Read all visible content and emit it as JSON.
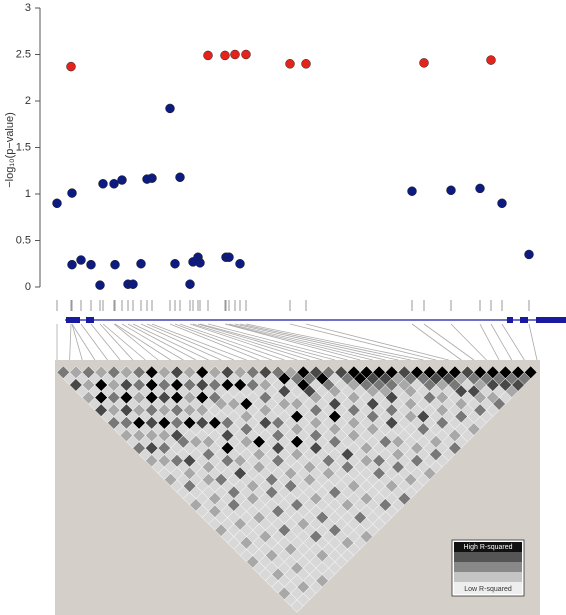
{
  "chart_data": {
    "type": "scatter",
    "ylabel": "−log₁₀(p−value)",
    "xlim": [
      40,
      566
    ],
    "ylim": [
      0,
      3
    ],
    "yticks": [
      0,
      0.5,
      1,
      1.5,
      2,
      2.5,
      3
    ],
    "series": [
      {
        "color": "#0d1a80",
        "x": [
          57,
          72,
          72,
          81,
          91,
          100,
          103,
          114,
          115,
          122,
          128,
          133,
          141,
          147,
          152,
          170,
          175,
          180,
          190,
          193,
          198,
          200,
          226,
          229,
          240,
          412,
          451,
          480,
          502,
          529
        ],
        "values": [
          0.9,
          1.01,
          0.24,
          0.29,
          0.24,
          0.02,
          1.11,
          1.11,
          0.24,
          1.15,
          0.03,
          0.03,
          0.25,
          1.16,
          1.17,
          1.92,
          0.25,
          1.18,
          0.03,
          0.27,
          0.32,
          0.26,
          0.32,
          0.32,
          0.25,
          1.03,
          1.04,
          1.06,
          0.9,
          0.35
        ]
      },
      {
        "color": "#e4231b",
        "x": [
          71,
          208,
          225,
          235,
          246,
          290,
          306,
          424,
          491
        ],
        "values": [
          2.37,
          2.49,
          2.49,
          2.5,
          2.5,
          2.4,
          2.4,
          2.41,
          2.44
        ]
      }
    ],
    "ld_r2": [
      [
        0.5
      ],
      [
        0.1,
        0.3
      ],
      [
        0.7,
        0.1,
        0.5
      ],
      [
        0.1,
        0.3,
        0.1,
        0.3
      ],
      [
        0.3,
        0.1,
        1,
        0.1,
        0.5
      ],
      [
        0.1,
        1,
        0.1,
        0.3,
        0.1,
        0.3
      ],
      [
        0.7,
        0.1,
        0.5,
        0.1,
        0.7,
        0.1,
        0.5
      ],
      [
        0.1,
        0.3,
        0.1,
        1,
        0.1,
        0.5,
        0.1,
        1
      ],
      [
        0.5,
        0.1,
        0.7,
        0.1,
        0.3,
        0.1,
        1,
        0.1,
        0.3
      ],
      [
        0.1,
        0.5,
        0.1,
        0.3,
        0.1,
        1,
        0.1,
        0.5,
        0.1,
        0.7
      ],
      [
        0.3,
        0.1,
        1,
        0.1,
        0.5,
        0.1,
        0.7,
        0.1,
        1,
        0.1,
        0.3
      ],
      [
        0.1,
        0.3,
        0.1,
        0.7,
        0.1,
        0.3,
        0.1,
        1,
        0.1,
        0.5,
        0.1,
        1
      ],
      [
        0.5,
        0.1,
        0.3,
        0.1,
        1,
        0.1,
        0.5,
        0.1,
        0.3,
        0.1,
        0.7,
        0.1,
        0.3
      ],
      [
        0.1,
        0.7,
        0.1,
        0.3,
        0.1,
        0.5,
        0.1,
        0.3,
        0.1,
        1,
        0.1,
        0.5,
        0.1,
        0.7
      ],
      [
        0.3,
        0.1,
        0.5,
        0.1,
        0.7,
        0.1,
        1,
        0.1,
        0.3,
        0.1,
        0.5,
        0.1,
        1,
        0.1,
        0.3
      ],
      [
        0.1,
        0.3,
        0.1,
        0.1,
        0.5,
        0.1,
        0.1,
        0.7,
        0.1,
        0.1,
        0.3,
        0.1,
        0.1,
        1,
        0.1,
        0.5
      ],
      [
        0.1,
        0.1,
        0.5,
        0.1,
        0.1,
        0.3,
        0.1,
        0.1,
        1,
        0.1,
        0.1,
        0.3,
        0.1,
        0.1,
        0.5,
        0.1,
        0.7
      ],
      [
        0.3,
        0.1,
        0.1,
        0.7,
        0.1,
        0.1,
        0.3,
        0.1,
        0.1,
        0.5,
        0.1,
        0.1,
        1,
        0.1,
        0.1,
        0.3,
        0.1,
        0.5
      ],
      [
        0.1,
        0.1,
        0.3,
        0.1,
        0.1,
        0.5,
        0.1,
        0.1,
        0.7,
        0.1,
        0.1,
        0.3,
        0.1,
        0.1,
        0.5,
        0.1,
        0.1,
        1,
        0.3
      ],
      [
        0.1,
        0.5,
        0.1,
        0.1,
        0.3,
        0.1,
        0.1,
        1,
        0.1,
        0.1,
        0.5,
        0.1,
        0.1,
        0.3,
        0.1,
        0.1,
        0.7,
        0.1,
        0.5,
        1
      ],
      [
        0.1,
        0.1,
        0.1,
        0.3,
        0.1,
        0.1,
        0.5,
        0.1,
        0.1,
        0.3,
        0.1,
        0.1,
        0.7,
        0.1,
        0.1,
        0.3,
        0.1,
        0.1,
        1,
        0.5,
        0.7
      ],
      [
        0.3,
        0.1,
        0.1,
        0.1,
        0.5,
        0.1,
        0.1,
        0.3,
        0.1,
        0.1,
        1,
        0.1,
        0.1,
        0.5,
        0.1,
        0.1,
        0.3,
        0.1,
        0.7,
        0.1,
        1,
        0.5
      ],
      [
        0.1,
        0.1,
        0.3,
        0.1,
        0.1,
        0.1,
        0.7,
        0.1,
        0.1,
        0.3,
        0.1,
        0.1,
        0.5,
        0.1,
        0.1,
        1,
        0.1,
        0.1,
        0.3,
        0.1,
        0.5,
        0.1,
        0.7
      ],
      [
        0.1,
        0.3,
        0.1,
        0.1,
        0.5,
        0.1,
        0.1,
        0.1,
        0.3,
        0.1,
        0.1,
        0.7,
        0.1,
        0.1,
        0.3,
        0.1,
        0.1,
        0.5,
        0.1,
        0.1,
        0.3,
        0.1,
        0.5,
        1
      ],
      [
        0.1,
        0.1,
        0.1,
        0.5,
        0.1,
        0.1,
        0.3,
        0.1,
        0.1,
        0.1,
        0.5,
        0.1,
        0.1,
        1,
        0.1,
        0.1,
        0.3,
        0.1,
        0.1,
        0.7,
        0.1,
        0.1,
        0.3,
        1,
        1
      ],
      [
        0.3,
        0.1,
        0.1,
        0.1,
        0.1,
        0.3,
        0.1,
        0.1,
        0.5,
        0.1,
        0.1,
        0.1,
        0.3,
        0.1,
        0.1,
        0.5,
        0.1,
        0.1,
        1,
        0.1,
        0.1,
        0.3,
        0.1,
        0.5,
        0.7,
        1
      ],
      [
        0.1,
        0.1,
        0.3,
        0.1,
        0.1,
        0.1,
        0.1,
        0.5,
        0.1,
        0.1,
        0.3,
        0.1,
        0.1,
        0.1,
        0.7,
        0.1,
        0.1,
        0.3,
        0.1,
        0.1,
        0.5,
        0.1,
        0.1,
        0.3,
        0.5,
        0.7,
        1
      ],
      [
        0.1,
        0.1,
        0.1,
        0.1,
        0.3,
        0.1,
        0.1,
        0.1,
        0.1,
        0.5,
        0.1,
        0.1,
        0.3,
        0.1,
        0.1,
        0.1,
        0.5,
        0.1,
        0.1,
        0.3,
        0.1,
        0.1,
        0.7,
        0.1,
        0.3,
        0.5,
        0.3,
        0.7
      ],
      [
        0.1,
        0.3,
        0.1,
        0.1,
        0.1,
        0.1,
        0.5,
        0.1,
        0.1,
        0.1,
        0.1,
        0.3,
        0.1,
        0.1,
        0.5,
        0.1,
        0.1,
        0.1,
        0.3,
        0.1,
        0.1,
        0.5,
        0.1,
        0.1,
        0.7,
        0.1,
        0.3,
        0.5,
        1
      ],
      [
        0.1,
        0.1,
        0.1,
        0.3,
        0.1,
        0.1,
        0.1,
        0.1,
        0.5,
        0.1,
        0.1,
        0.1,
        0.1,
        0.3,
        0.1,
        0.1,
        0.7,
        0.1,
        0.1,
        0.1,
        0.3,
        0.1,
        0.1,
        0.5,
        0.1,
        0.1,
        0.3,
        0.1,
        0.5,
        1
      ],
      [
        0.3,
        0.1,
        0.1,
        0.1,
        0.1,
        0.5,
        0.1,
        0.1,
        0.1,
        0.1,
        0.3,
        0.1,
        0.1,
        0.1,
        0.1,
        0.5,
        0.1,
        0.1,
        0.3,
        0.1,
        0.1,
        0.1,
        0.7,
        0.1,
        0.1,
        0.3,
        0.1,
        0.1,
        0.5,
        0.7,
        1
      ],
      [
        0.1,
        0.1,
        0.3,
        0.1,
        0.1,
        0.1,
        0.1,
        0.3,
        0.1,
        0.1,
        0.1,
        0.1,
        0.5,
        0.1,
        0.1,
        0.1,
        0.1,
        0.3,
        0.1,
        0.1,
        0.5,
        0.1,
        0.1,
        0.1,
        0.3,
        0.1,
        0.1,
        0.5,
        0.1,
        0.3,
        0.7,
        1
      ],
      [
        0.1,
        0.1,
        0.1,
        0.1,
        0.3,
        0.1,
        0.1,
        0.1,
        0.1,
        0.5,
        0.1,
        0.1,
        0.1,
        0.1,
        0.3,
        0.1,
        0.1,
        0.1,
        0.5,
        0.1,
        0.1,
        0.3,
        0.1,
        0.1,
        0.1,
        0.7,
        0.1,
        0.1,
        0.3,
        0.1,
        0.5,
        0.3,
        0.7
      ],
      [
        0.1,
        0.3,
        0.1,
        0.1,
        0.1,
        0.1,
        0.1,
        0.5,
        0.1,
        0.1,
        0.1,
        0.1,
        0.3,
        0.1,
        0.1,
        0.1,
        0.1,
        0.5,
        0.1,
        0.1,
        0.3,
        0.1,
        0.1,
        0.1,
        0.5,
        0.1,
        0.1,
        0.3,
        0.1,
        0.1,
        0.7,
        0.1,
        0.5,
        1
      ],
      [
        0.1,
        0.1,
        0.1,
        0.3,
        0.1,
        0.1,
        0.1,
        0.1,
        0.1,
        0.5,
        0.1,
        0.1,
        0.1,
        0.1,
        0.3,
        0.1,
        0.1,
        0.1,
        0.1,
        0.5,
        0.1,
        0.1,
        0.3,
        0.1,
        0.1,
        0.1,
        0.5,
        0.1,
        0.1,
        0.3,
        0.1,
        0.7,
        0.3,
        0.5,
        1
      ],
      [
        0.3,
        0.1,
        0.1,
        0.1,
        0.1,
        0.1,
        0.3,
        0.1,
        0.1,
        0.1,
        0.1,
        0.1,
        0.5,
        0.1,
        0.1,
        0.1,
        0.1,
        0.3,
        0.1,
        0.1,
        0.1,
        0.5,
        0.1,
        0.1,
        0.3,
        0.1,
        0.1,
        0.1,
        0.5,
        0.1,
        0.1,
        0.3,
        0.1,
        0.7,
        0.5,
        1
      ],
      [
        0.1,
        0.1,
        0.3,
        0.1,
        0.1,
        0.1,
        0.1,
        0.1,
        0.1,
        0.3,
        0.1,
        0.1,
        0.1,
        0.1,
        0.1,
        0.5,
        0.1,
        0.1,
        0.1,
        0.3,
        0.1,
        0.1,
        0.1,
        0.5,
        0.1,
        0.1,
        0.3,
        0.1,
        0.1,
        0.1,
        0.5,
        0.1,
        0.3,
        0.1,
        0.7,
        0.5,
        1
      ],
      [
        0.1,
        0.1,
        0.1,
        0.1,
        0.3,
        0.1,
        0.1,
        0.1,
        0.1,
        0.1,
        0.1,
        0.3,
        0.1,
        0.1,
        0.1,
        0.1,
        0.1,
        0.5,
        0.1,
        0.1,
        0.1,
        0.3,
        0.1,
        0.1,
        0.1,
        0.5,
        0.1,
        0.1,
        0.3,
        0.1,
        0.1,
        0.1,
        0.5,
        0.1,
        0.3,
        0.7,
        0.5,
        1
      ]
    ],
    "legend": {
      "high": "High R-squared",
      "low": "Low R-squared"
    }
  }
}
